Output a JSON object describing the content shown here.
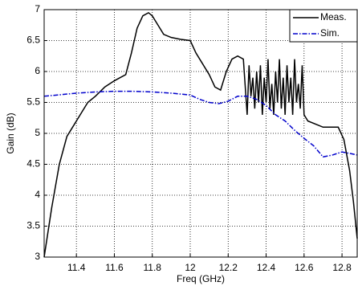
{
  "chart_data": {
    "type": "line",
    "x_label": "Freq (GHz)",
    "y_label": "Gain (dB)",
    "xlim": [
      11.23,
      12.88
    ],
    "ylim": [
      3,
      7
    ],
    "xticks": [
      11.4,
      11.6,
      11.8,
      12,
      12.2,
      12.4,
      12.6,
      12.8
    ],
    "yticks": [
      3,
      3.5,
      4,
      4.5,
      5,
      5.5,
      6,
      6.5,
      7
    ],
    "grid": true,
    "legend": "upper right",
    "series": [
      {
        "name": "Meas.",
        "color": "#000000",
        "dash": "solid",
        "x": [
          11.23,
          11.27,
          11.31,
          11.35,
          11.38,
          11.42,
          11.46,
          11.5,
          11.55,
          11.6,
          11.63,
          11.66,
          11.69,
          11.72,
          11.75,
          11.78,
          11.8,
          11.83,
          11.86,
          11.9,
          11.95,
          12.0,
          12.03,
          12.06,
          12.1,
          12.13,
          12.16,
          12.19,
          12.22,
          12.25,
          12.28,
          12.3,
          12.31,
          12.32,
          12.33,
          12.34,
          12.35,
          12.36,
          12.37,
          12.38,
          12.39,
          12.4,
          12.41,
          12.42,
          12.43,
          12.44,
          12.45,
          12.46,
          12.47,
          12.48,
          12.49,
          12.5,
          12.51,
          12.52,
          12.53,
          12.54,
          12.55,
          12.56,
          12.57,
          12.58,
          12.59,
          12.6,
          12.62,
          12.66,
          12.7,
          12.74,
          12.78,
          12.81,
          12.84,
          12.86,
          12.88
        ],
        "values": [
          3.0,
          3.8,
          4.5,
          4.95,
          5.1,
          5.3,
          5.5,
          5.6,
          5.75,
          5.85,
          5.9,
          5.95,
          6.3,
          6.7,
          6.9,
          6.95,
          6.9,
          6.75,
          6.6,
          6.55,
          6.52,
          6.5,
          6.3,
          6.15,
          5.95,
          5.75,
          5.7,
          6.0,
          6.2,
          6.25,
          6.2,
          5.3,
          6.1,
          5.6,
          5.9,
          5.4,
          6.0,
          5.5,
          6.1,
          5.3,
          5.9,
          5.5,
          6.2,
          5.4,
          5.8,
          5.3,
          6.0,
          5.5,
          6.2,
          5.4,
          5.9,
          5.3,
          6.1,
          5.5,
          5.9,
          5.3,
          6.2,
          5.5,
          5.8,
          5.4,
          6.1,
          5.3,
          5.2,
          5.15,
          5.1,
          5.1,
          5.1,
          4.9,
          4.4,
          3.9,
          3.3
        ]
      },
      {
        "name": "Sim.",
        "color": "#0000cc",
        "dash": "dashdot",
        "x": [
          11.23,
          11.3,
          11.4,
          11.5,
          11.6,
          11.7,
          11.8,
          11.9,
          12.0,
          12.05,
          12.1,
          12.15,
          12.2,
          12.25,
          12.3,
          12.35,
          12.4,
          12.45,
          12.5,
          12.55,
          12.6,
          12.65,
          12.7,
          12.75,
          12.8,
          12.85,
          12.88
        ],
        "values": [
          5.6,
          5.62,
          5.65,
          5.67,
          5.68,
          5.68,
          5.67,
          5.65,
          5.62,
          5.55,
          5.5,
          5.48,
          5.52,
          5.6,
          5.6,
          5.55,
          5.45,
          5.3,
          5.2,
          5.05,
          4.92,
          4.8,
          4.62,
          4.65,
          4.7,
          4.67,
          4.65
        ]
      }
    ]
  }
}
